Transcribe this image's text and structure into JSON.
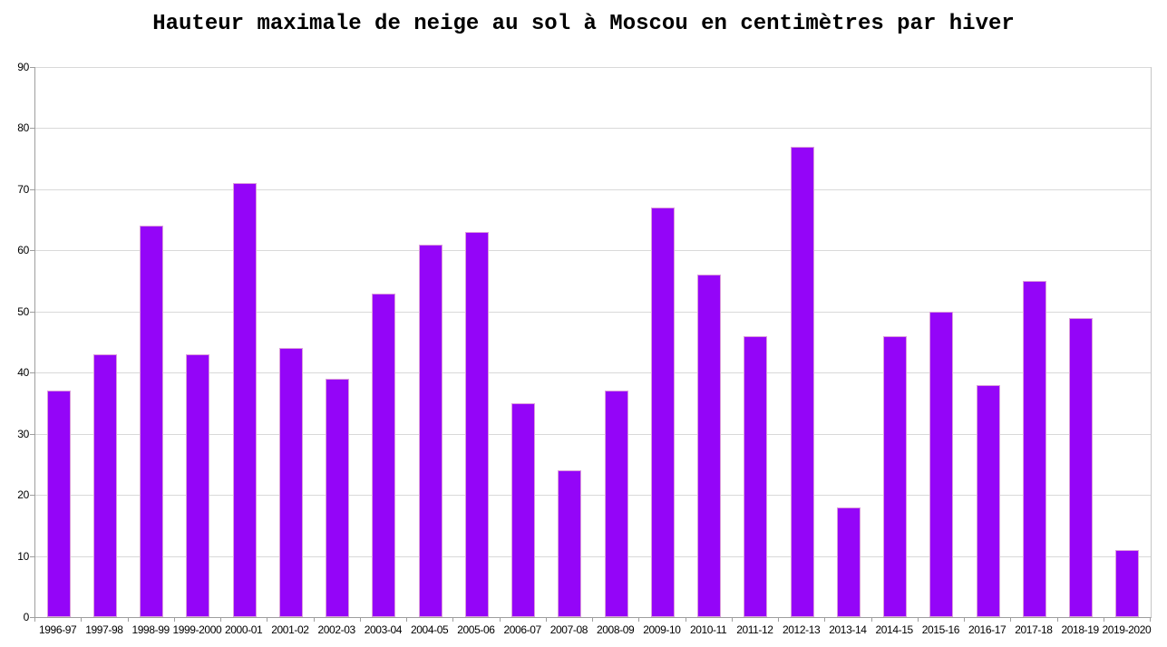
{
  "chart_data": {
    "type": "bar",
    "title": "Hauteur maximale de neige au sol à Moscou en centimètres par hiver",
    "categories": [
      "1996-97",
      "1997-98",
      "1998-99",
      "1999-2000",
      "2000-01",
      "2001-02",
      "2002-03",
      "2003-04",
      "2004-05",
      "2005-06",
      "2006-07",
      "2007-08",
      "2008-09",
      "2009-10",
      "2010-11",
      "2011-12",
      "2012-13",
      "2013-14",
      "2014-15",
      "2015-16",
      "2016-17",
      "2017-18",
      "2018-19",
      "2019-2020"
    ],
    "values": [
      37,
      43,
      64,
      43,
      71,
      44,
      39,
      53,
      61,
      63,
      35,
      24,
      37,
      67,
      56,
      46,
      77,
      18,
      46,
      50,
      38,
      55,
      49,
      11
    ],
    "xlabel": "",
    "ylabel": "",
    "ylim": [
      0,
      90
    ],
    "y_ticks": [
      0,
      10,
      20,
      30,
      40,
      50,
      60,
      70,
      80,
      90
    ],
    "grid": true,
    "legend": false,
    "colors": {
      "bar_fill": "#9405F8",
      "bar_border": "#DB9DDB",
      "gridline": "#D9D9D9",
      "axis": "#9E9E9E",
      "text": "#000000",
      "background": "#FFFFFF"
    }
  }
}
